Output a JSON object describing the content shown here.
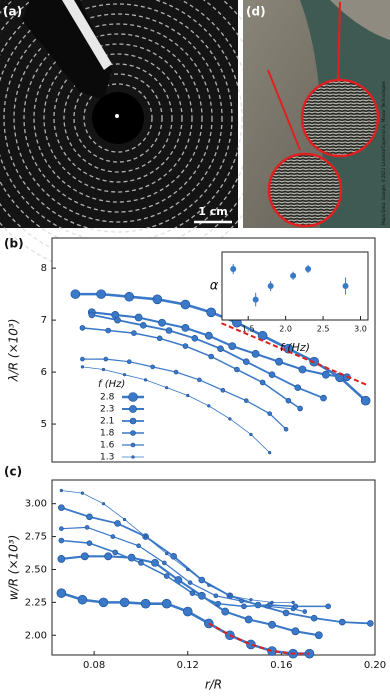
{
  "photos": {
    "a": {
      "label": "(a)",
      "scale_bar": "1 cm"
    },
    "d": {
      "label": "(d)",
      "credit": "Maps Data: Google, ©2021 Landsat/Copernicus, Maxar Technologies"
    }
  },
  "chart_data": [
    {
      "type": "line",
      "panel_label": "(b)",
      "ylabel": "λ/R (×10³)",
      "legend_title": "f (Hz)",
      "xlim": [
        0.062,
        0.2
      ],
      "ylim": [
        4.27,
        8.58
      ],
      "yticks": [
        5,
        6,
        7,
        8
      ],
      "trend_line": {
        "x": [
          0.1344,
          0.1967
        ],
        "y": [
          6.94,
          5.75
        ],
        "color": "#e0201b"
      },
      "series": [
        {
          "name": "2.8",
          "color": "#3a78c8",
          "linewidth": 2.6,
          "marker_size": 4.5,
          "x": [
            0.072,
            0.083,
            0.095,
            0.107,
            0.119,
            0.13,
            0.141,
            0.152,
            0.163,
            0.174,
            0.185,
            0.196
          ],
          "values": [
            7.5,
            7.5,
            7.45,
            7.4,
            7.3,
            7.15,
            6.95,
            6.7,
            6.45,
            6.2,
            5.9,
            5.45
          ]
        },
        {
          "name": "2.3",
          "color": "#3a78c8",
          "linewidth": 2.1,
          "marker_size": 3.6,
          "x": [
            0.079,
            0.089,
            0.099,
            0.109,
            0.119,
            0.129,
            0.139,
            0.149,
            0.159,
            0.169,
            0.179,
            0.188
          ],
          "values": [
            7.15,
            7.1,
            7.05,
            6.95,
            6.85,
            6.7,
            6.5,
            6.35,
            6.2,
            6.05,
            5.95,
            5.9
          ]
        },
        {
          "name": "2.1",
          "color": "#3a78c8",
          "linewidth": 1.8,
          "marker_size": 3,
          "x": [
            0.079,
            0.09,
            0.101,
            0.112,
            0.123,
            0.134,
            0.145,
            0.156,
            0.167,
            0.178
          ],
          "values": [
            7.1,
            7,
            6.9,
            6.8,
            6.65,
            6.45,
            6.2,
            5.95,
            5.7,
            5.5
          ]
        },
        {
          "name": "1.8",
          "color": "#3a78c8",
          "linewidth": 1.5,
          "marker_size": 2.5,
          "x": [
            0.075,
            0.086,
            0.097,
            0.108,
            0.119,
            0.13,
            0.141,
            0.152,
            0.163,
            0.168
          ],
          "values": [
            6.85,
            6.8,
            6.75,
            6.65,
            6.5,
            6.3,
            6.05,
            5.8,
            5.45,
            5.3
          ]
        },
        {
          "name": "1.6",
          "color": "#3a78c8",
          "linewidth": 1.2,
          "marker_size": 2,
          "x": [
            0.075,
            0.085,
            0.095,
            0.105,
            0.115,
            0.125,
            0.135,
            0.145,
            0.155,
            0.162
          ],
          "values": [
            6.25,
            6.25,
            6.2,
            6.1,
            6,
            5.85,
            5.65,
            5.45,
            5.2,
            4.9
          ]
        },
        {
          "name": "1.3",
          "color": "#3a78c8",
          "linewidth": 0.8,
          "marker_size": 1.3,
          "x": [
            0.075,
            0.084,
            0.093,
            0.102,
            0.111,
            0.12,
            0.129,
            0.138,
            0.147,
            0.155
          ],
          "values": [
            6.1,
            6.05,
            5.95,
            5.85,
            5.7,
            5.55,
            5.35,
            5.1,
            4.8,
            4.45
          ]
        }
      ]
    },
    {
      "type": "errorbar",
      "ylabel": "α",
      "xlabel": "f (Hz)",
      "xlim": [
        1.15,
        3.1
      ],
      "ylim": [
        2,
        4
      ],
      "xticks": [
        1.5,
        {
          "value": 2,
          "label": "2.0"
        },
        2.5,
        {
          "value": 3,
          "label": "3.0"
        }
      ],
      "series": [
        {
          "color": "#3a78c8",
          "x": [
            1.3,
            1.6,
            1.8,
            2.1,
            2.3,
            2.8
          ],
          "values": [
            3.5,
            2.6,
            3.0,
            3.3,
            3.5,
            3.0
          ],
          "errors": [
            0.15,
            0.2,
            0.15,
            0.12,
            0.12,
            0.25
          ]
        }
      ]
    },
    {
      "type": "line",
      "panel_label": "(c)",
      "ylabel": "w/R (×10³)",
      "xlabel": "r/R",
      "xlim": [
        0.062,
        0.2
      ],
      "ylim": [
        1.85,
        3.18
      ],
      "xticks": [
        0.08,
        0.12,
        0.16,
        {
          "value": 0.2,
          "label": "0.20"
        }
      ],
      "yticks": [
        {
          "value": 2,
          "label": "2.00"
        },
        2.25,
        {
          "value": 2.5,
          "label": "2.50"
        },
        2.75,
        {
          "value": 3,
          "label": "3.00"
        }
      ],
      "trend_line": {
        "x": [
          0.129,
          0.138,
          0.147,
          0.156,
          0.165,
          0.172
        ],
        "y": [
          2.09,
          2.0,
          1.93,
          1.88,
          1.86,
          1.86
        ],
        "color": "#e0201b"
      },
      "series": [
        {
          "color": "#3a78c8",
          "linewidth": 2.6,
          "marker_size": 4.5,
          "x": [
            0.066,
            0.075,
            0.084,
            0.093,
            0.102,
            0.111,
            0.12,
            0.129,
            0.138,
            0.147,
            0.156,
            0.165,
            0.172
          ],
          "values": [
            2.32,
            2.27,
            2.25,
            2.25,
            2.24,
            2.24,
            2.18,
            2.09,
            2.0,
            1.93,
            1.88,
            1.86,
            1.86
          ]
        },
        {
          "color": "#3a78c8",
          "linewidth": 2.1,
          "marker_size": 3.6,
          "x": [
            0.066,
            0.076,
            0.086,
            0.096,
            0.106,
            0.116,
            0.126,
            0.136,
            0.146,
            0.156,
            0.166,
            0.176
          ],
          "values": [
            2.58,
            2.6,
            2.6,
            2.59,
            2.55,
            2.42,
            2.3,
            2.18,
            2.12,
            2.08,
            2.03,
            2.0
          ]
        },
        {
          "color": "#3a78c8",
          "linewidth": 1.8,
          "marker_size": 3,
          "x": [
            0.066,
            0.078,
            0.09,
            0.102,
            0.114,
            0.126,
            0.138,
            0.15,
            0.162,
            0.174,
            0.186,
            0.198
          ],
          "values": [
            2.97,
            2.9,
            2.85,
            2.75,
            2.6,
            2.42,
            2.3,
            2.23,
            2.17,
            2.13,
            2.1,
            2.09
          ]
        },
        {
          "color": "#3a78c8",
          "linewidth": 1.5,
          "marker_size": 2.5,
          "x": [
            0.066,
            0.078,
            0.089,
            0.1,
            0.111,
            0.122,
            0.133,
            0.144,
            0.155,
            0.166,
            0.18
          ],
          "values": [
            2.72,
            2.7,
            2.63,
            2.55,
            2.45,
            2.32,
            2.24,
            2.22,
            2.23,
            2.22,
            2.22
          ]
        },
        {
          "color": "#3a78c8",
          "linewidth": 1.2,
          "marker_size": 2,
          "x": [
            0.066,
            0.077,
            0.088,
            0.099,
            0.11,
            0.121,
            0.132,
            0.143,
            0.154,
            0.165,
            0.17
          ],
          "values": [
            2.81,
            2.82,
            2.75,
            2.68,
            2.55,
            2.4,
            2.3,
            2.26,
            2.22,
            2.2,
            2.18
          ]
        },
        {
          "color": "#3a78c8",
          "linewidth": 0.8,
          "marker_size": 1.3,
          "x": [
            0.066,
            0.075,
            0.084,
            0.093,
            0.102,
            0.111,
            0.12,
            0.129,
            0.138,
            0.147,
            0.156,
            0.165
          ],
          "values": [
            3.1,
            3.08,
            3.0,
            2.88,
            2.75,
            2.62,
            2.5,
            2.38,
            2.3,
            2.27,
            2.25,
            2.25
          ]
        }
      ]
    }
  ]
}
